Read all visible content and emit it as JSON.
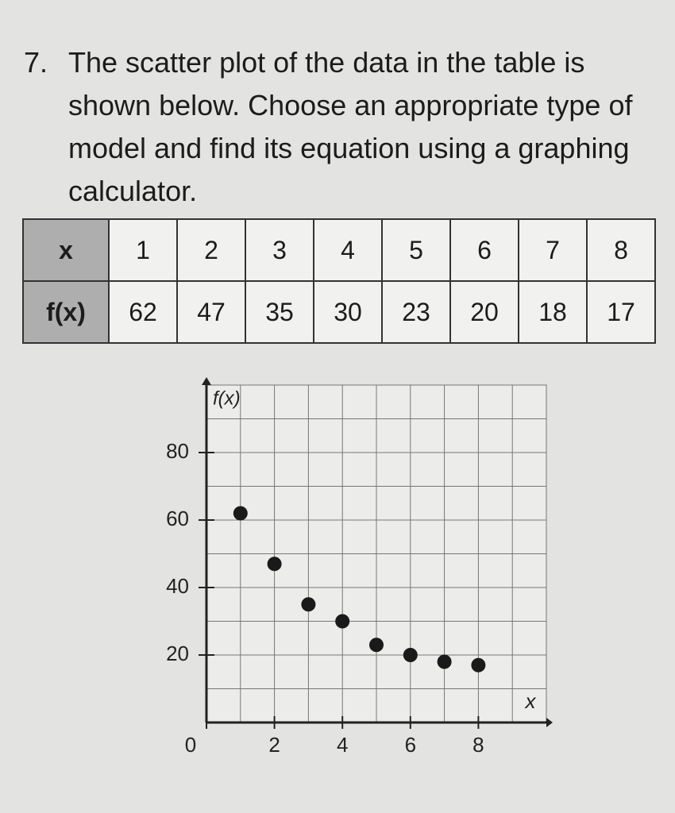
{
  "question": {
    "number": "7.",
    "text": "The scatter plot of the data in the table is shown below. Choose an appropriate type of model and find its equation using a graphing calculator."
  },
  "table": {
    "rows": [
      [
        "x",
        1,
        2,
        3,
        4,
        5,
        6,
        7,
        8
      ],
      [
        "f(x)",
        62,
        47,
        35,
        30,
        23,
        20,
        18,
        17
      ]
    ]
  },
  "chart_data": {
    "type": "scatter",
    "x_label": "x",
    "y_label": "f(x)",
    "x": [
      1,
      2,
      3,
      4,
      5,
      6,
      7,
      8
    ],
    "values": [
      62,
      47,
      35,
      30,
      23,
      20,
      18,
      17
    ],
    "color": "#1a1a1a",
    "xlim": [
      0,
      10
    ],
    "ylim": [
      0,
      100
    ],
    "xticks": [
      0,
      2,
      4,
      6,
      8
    ],
    "yticks": [
      20,
      40,
      60,
      80
    ],
    "xminorticks": [
      1,
      3,
      5,
      7,
      9,
      10
    ],
    "yminorticks": [
      10,
      30,
      50,
      70,
      90,
      100
    ],
    "grid": true
  }
}
